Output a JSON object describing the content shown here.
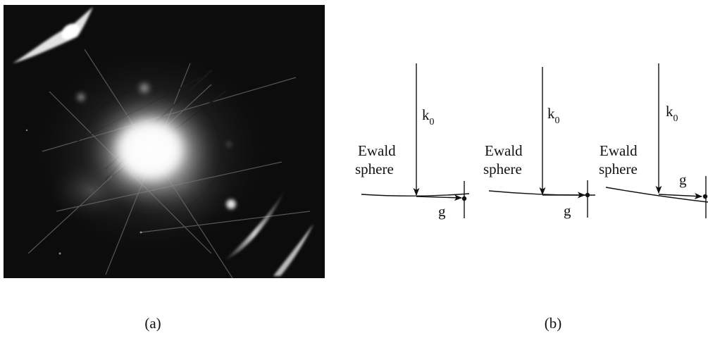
{
  "panel_a": {
    "caption": "(a)"
  },
  "panel_b": {
    "caption": "(b)",
    "diagrams": [
      {
        "k_label": "k",
        "k_subscript": "0",
        "ewald_line1": "Ewald",
        "ewald_line2": "sphere",
        "g_label": "g"
      },
      {
        "k_label": "k",
        "k_subscript": "0",
        "ewald_line1": "Ewald",
        "ewald_line2": "sphere",
        "g_label": "g"
      },
      {
        "k_label": "k",
        "k_subscript": "0",
        "ewald_line1": "Ewald",
        "ewald_line2": "sphere",
        "g_label": "g"
      }
    ]
  },
  "colors": {
    "background": "#ffffff",
    "ink": "#111111",
    "photo_background": "#0c0c0c"
  }
}
